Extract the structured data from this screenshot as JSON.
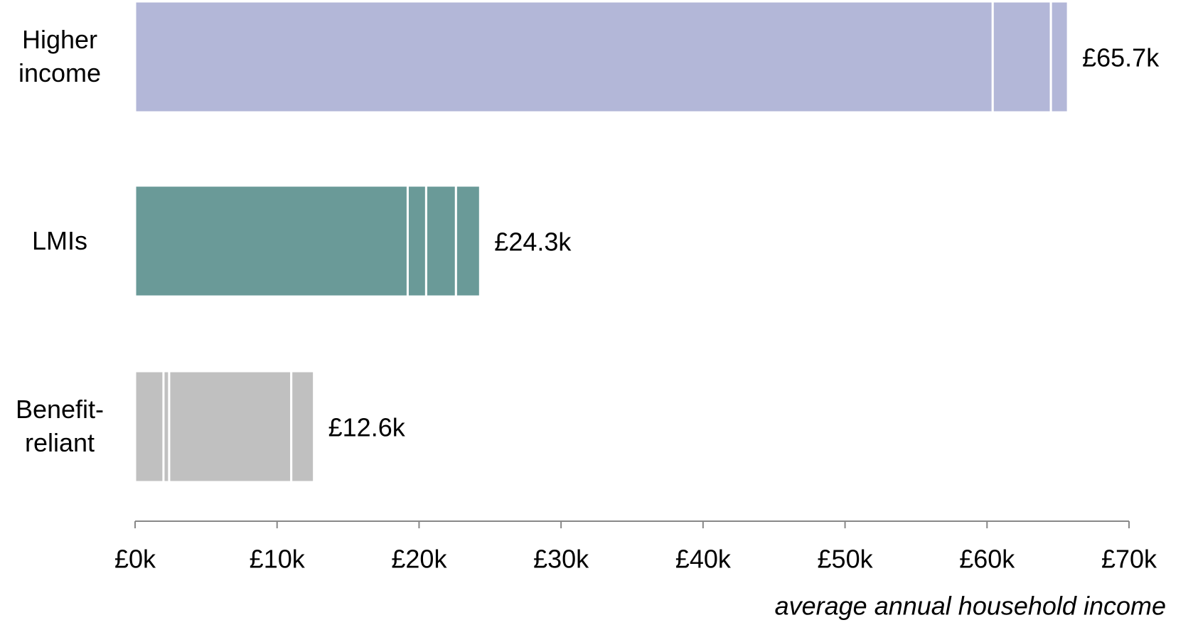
{
  "chart_data": {
    "type": "stacked-bar-horizontal",
    "categories": [
      "Higher income",
      "LMIs",
      "Benefit-reliant"
    ],
    "segments": [
      [
        60.4,
        4.1,
        1.2
      ],
      [
        19.2,
        1.3,
        2.1,
        1.7
      ],
      [
        2.0,
        0.4,
        8.6,
        1.6
      ]
    ],
    "values": [
      65.7,
      24.3,
      12.6
    ],
    "value_labels": [
      "£65.7k",
      "£24.3k",
      "£12.6k"
    ],
    "colors": [
      "#b3b7d8",
      "#6a9a98",
      "#c0c0c0"
    ],
    "label_colors": [
      "#3e4170",
      "#2f4f4e",
      "#8a8a8a"
    ],
    "xlim": [
      0,
      70
    ],
    "xticks": [
      {
        "value": 0,
        "label": "£0k"
      },
      {
        "value": 10,
        "label": "£10k"
      },
      {
        "value": 20,
        "label": "£20k"
      },
      {
        "value": 30,
        "label": "£30k"
      },
      {
        "value": 40,
        "label": "£40k"
      },
      {
        "value": 50,
        "label": "£50k"
      },
      {
        "value": 60,
        "label": "£60k"
      },
      {
        "value": 70,
        "label": "£70k"
      }
    ],
    "x_label": "average annual household income"
  }
}
